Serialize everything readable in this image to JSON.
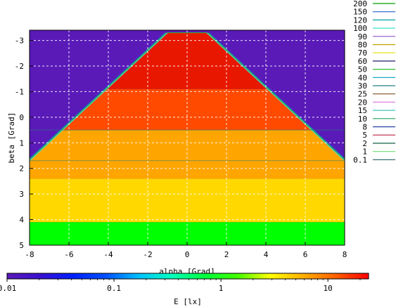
{
  "chart_data": {
    "type": "heatmap",
    "title": "",
    "xlabel": "alpha [Grad]",
    "ylabel": "beta [Grad]",
    "xlim": [
      -8,
      8
    ],
    "ylim": [
      5,
      -3.4
    ],
    "x_ticks": [
      "-8",
      "-6",
      "-4",
      "-2",
      "0",
      "2",
      "4",
      "6",
      "8"
    ],
    "y_ticks": [
      "-3",
      "-2",
      "-1",
      "0",
      "1",
      "2",
      "3",
      "4",
      "5"
    ],
    "grid": true,
    "contour_legend": {
      "placement": "right",
      "items": [
        {
          "label": "200",
          "color": "#00a000"
        },
        {
          "label": "150",
          "color": "#1f5fd0"
        },
        {
          "label": "120",
          "color": "#00a0a0"
        },
        {
          "label": "100",
          "color": "#40e0d0"
        },
        {
          "label": "90",
          "color": "#9050d0"
        },
        {
          "label": "80",
          "color": "#c0a000"
        },
        {
          "label": "70",
          "color": "#e0e000"
        },
        {
          "label": "60",
          "color": "#1a1a6a"
        },
        {
          "label": "50",
          "color": "#30c030"
        },
        {
          "label": "40",
          "color": "#00a0c0"
        },
        {
          "label": "30",
          "color": "#208080"
        },
        {
          "label": "25",
          "color": "#805020"
        },
        {
          "label": "20",
          "color": "#e080e0"
        },
        {
          "label": "15",
          "color": "#40c0c0"
        },
        {
          "label": "10",
          "color": "#20a060"
        },
        {
          "label": "8",
          "color": "#2040a0"
        },
        {
          "label": "5",
          "color": "#c02040"
        },
        {
          "label": "2",
          "color": "#106040"
        },
        {
          "label": "1",
          "color": "#80e080"
        },
        {
          "label": "0.1",
          "color": "#206060"
        }
      ]
    },
    "regions": [
      {
        "value_lx": 0.01,
        "color": "#5a1ab8",
        "desc_side": "outside wedge"
      },
      {
        "value_lx": 20,
        "color": "#e81800",
        "beta_from": -3.3,
        "beta_to": -1.1
      },
      {
        "value_lx": 15,
        "color": "#ff4a00",
        "beta_from": -1.1,
        "beta_to": 0.5
      },
      {
        "value_lx": 12,
        "color": "#ffa500",
        "beta_from": 0.5,
        "beta_to": 2.4
      },
      {
        "value_lx": 8,
        "color": "#ffd800",
        "beta_from": 2.4,
        "beta_to": 4.1
      },
      {
        "value_lx": 3,
        "color": "#00ff00",
        "beta_from": 4.1,
        "beta_to": 5.0
      }
    ],
    "wedge": {
      "top_beta": -3.3,
      "top_half_width_alpha": 1.0,
      "bottom_beta": 1.7,
      "bottom_half_width_alpha": 8.0
    },
    "colorbar": {
      "label": "E [lx]",
      "scale": "log",
      "range": [
        0.01,
        24
      ],
      "ticks": [
        "0.01",
        "0.1",
        "1",
        "10"
      ],
      "stops": [
        "#5a1ab8",
        "#3a10d0",
        "#0020ff",
        "#0050ff",
        "#00c0ff",
        "#00ffc0",
        "#00ff40",
        "#40ff00",
        "#ffff00",
        "#ffb000",
        "#ff6000",
        "#ff0000"
      ]
    }
  }
}
